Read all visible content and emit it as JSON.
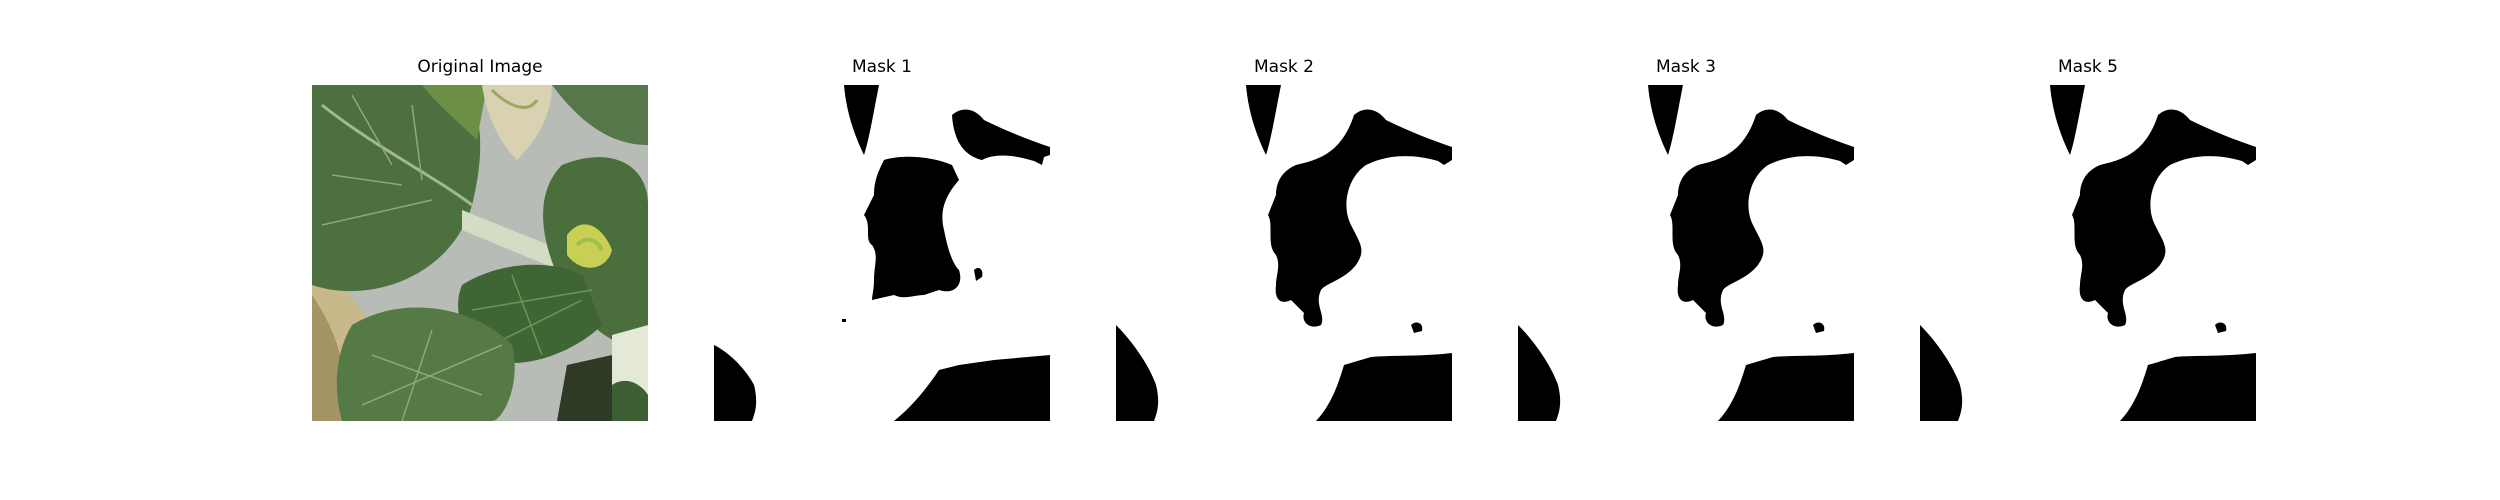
{
  "figure": {
    "panels": [
      {
        "title": "Original Image",
        "kind": "photo"
      },
      {
        "title": "Mask 1",
        "kind": "mask"
      },
      {
        "title": "Mask 2",
        "kind": "mask"
      },
      {
        "title": "Mask 3",
        "kind": "mask"
      },
      {
        "title": "Mask 5",
        "kind": "mask"
      }
    ]
  },
  "colors": {
    "background": "#ffffff",
    "mask_fg": "#000000",
    "leaf_dark": "#3f5f36",
    "leaf_mid": "#5a7d48",
    "leaf_light": "#8fb060",
    "leaf_yellow": "#c9cf55",
    "stem": "#d4dcc4",
    "backdrop": "#b8bcb6",
    "dry_leaf": "#c9b88a"
  }
}
